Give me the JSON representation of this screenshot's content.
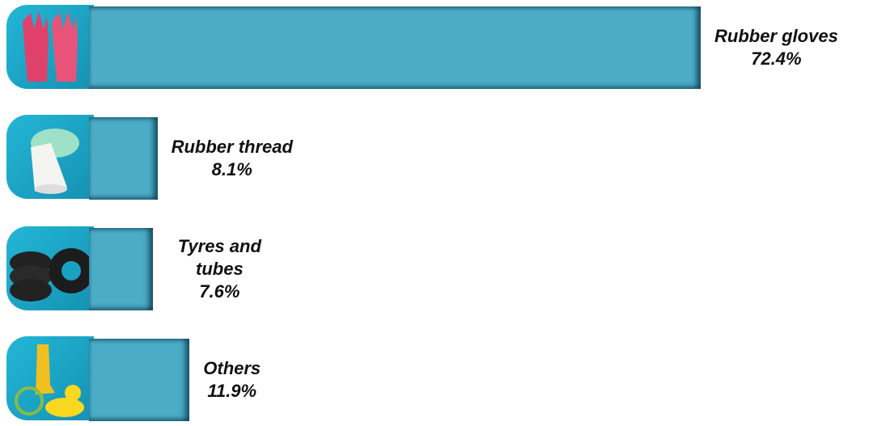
{
  "chart_data": {
    "type": "bar",
    "orientation": "horizontal",
    "categories": [
      "Rubber gloves",
      "Rubber thread",
      "Tyres and tubes",
      "Others"
    ],
    "values": [
      72.4,
      8.1,
      7.6,
      11.9
    ],
    "value_labels": [
      "72.4%",
      "8.1%",
      "7.6%",
      "11.9%"
    ],
    "color": "#4aacc6"
  }
}
